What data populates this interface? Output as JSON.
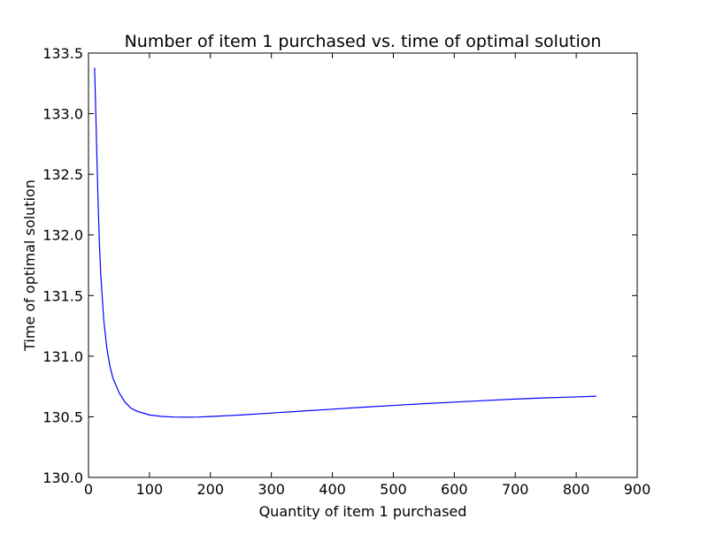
{
  "chart_data": {
    "type": "line",
    "title": "Number of item 1 purchased vs. time of optimal solution",
    "xlabel": "Quantity of item 1 purchased",
    "ylabel": "Time of optimal solution",
    "xlim": [
      0,
      900
    ],
    "ylim": [
      130.0,
      133.5
    ],
    "xticks": [
      "0",
      "100",
      "200",
      "300",
      "400",
      "500",
      "600",
      "700",
      "800",
      "900"
    ],
    "yticks": [
      "130.0",
      "130.5",
      "131.0",
      "131.5",
      "132.0",
      "132.5",
      "133.0",
      "133.5"
    ],
    "grid": false,
    "series": [
      {
        "color": "#0000ff",
        "points": [
          [
            10,
            133.38
          ],
          [
            12,
            133.0
          ],
          [
            14,
            132.6
          ],
          [
            16,
            132.22
          ],
          [
            18,
            131.92
          ],
          [
            20,
            131.68
          ],
          [
            25,
            131.3
          ],
          [
            30,
            131.07
          ],
          [
            35,
            130.92
          ],
          [
            40,
            130.82
          ],
          [
            50,
            130.7
          ],
          [
            60,
            130.62
          ],
          [
            70,
            130.57
          ],
          [
            80,
            130.545
          ],
          [
            100,
            130.515
          ],
          [
            120,
            130.503
          ],
          [
            140,
            130.498
          ],
          [
            160,
            130.497
          ],
          [
            180,
            130.498
          ],
          [
            200,
            130.502
          ],
          [
            250,
            130.515
          ],
          [
            300,
            130.531
          ],
          [
            350,
            130.547
          ],
          [
            400,
            130.563
          ],
          [
            450,
            130.579
          ],
          [
            500,
            130.594
          ],
          [
            550,
            130.608
          ],
          [
            600,
            130.621
          ],
          [
            650,
            130.634
          ],
          [
            700,
            130.646
          ],
          [
            750,
            130.656
          ],
          [
            800,
            130.664
          ],
          [
            833,
            130.67
          ]
        ]
      }
    ]
  }
}
